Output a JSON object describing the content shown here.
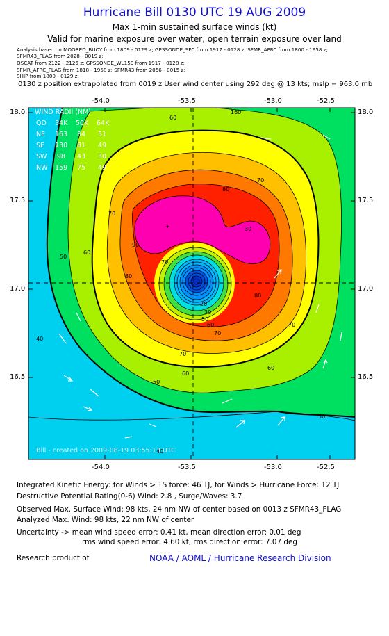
{
  "header": {
    "title": "Hurricane Bill 0130 UTC 19 AUG 2009",
    "subtitle1": "Max 1-min sustained surface winds (kt)",
    "subtitle2": "Valid for marine exposure over water, open terrain exposure over land"
  },
  "sources": [
    "Analysis based on   MOORED_BUOY from 1809 - 0129 z;   GPSSONDE_SFC from 1917 - 0128 z;   SFMR_AFRC from 1800 - 1958 z;",
    "SFMR43_FLAG from 2028 - 0019 z;",
    "QSCAT from 2122 - 2125 z;   GPSSONDE_WL150 from 1917 - 0128 z;",
    "SFMR_AFRC_FLAG from 1818 - 1958 z;   SFMR43 from 2056 - 0015 z;",
    "SHIP from 1800 - 0129 z;"
  ],
  "position_note": "0130 z position extrapolated from 0019 z User wind center using 292 deg @ 13 kts; mslp = 963.0 mb",
  "axes": {
    "lon_ticks": [
      "-54.0",
      "-53.5",
      "-53.0",
      "-52.5"
    ],
    "lat_ticks": [
      "18.0",
      "17.5",
      "17.0",
      "16.5"
    ],
    "lon_range": [
      -54.3,
      -52.3
    ],
    "lat_range": [
      16.0,
      18.0
    ]
  },
  "wind_radii": {
    "title": "WIND RADII (NM)",
    "header": [
      "QD",
      "34K",
      "50K",
      "64K"
    ],
    "rows": [
      [
        "NE",
        "163",
        "84",
        "51"
      ],
      [
        "SE",
        "130",
        "81",
        "49"
      ],
      [
        "SW",
        "98",
        "43",
        "30"
      ],
      [
        "NW",
        "159",
        "75",
        "49"
      ]
    ]
  },
  "contour_labels": [
    "160",
    "60",
    "50",
    "40",
    "90",
    "80",
    "70",
    "20",
    "30"
  ],
  "credit": "Bill  -  created on  2009-08-19  03:55:13 UTC",
  "colors": {
    "outer": "#00d0f0",
    "green": "#00e060",
    "lime": "#a8f000",
    "yellow": "#ffff00",
    "gold": "#ffc000",
    "orange": "#ff7800",
    "red": "#ff2000",
    "magenta": "#ff00b0",
    "eye_outer": "#0090ff",
    "eye_inner": "#0030d0"
  },
  "footer": {
    "ike": "Integrated Kinetic Energy:  for Winds > TS force: 46 TJ,  for Winds > Hurricane Force: 12 TJ",
    "dpr": "Destructive Potential Rating(0-6)   Wind: 2.8 , Surge/Waves: 3.7",
    "observed": "Observed Max. Surface Wind: 98 kts, 24 nm NW of center based on 0013 z SFMR43_FLAG",
    "analyzed": "Analyzed Max. Wind: 98 kts, 22 nm NW of center",
    "uncertainty1": "Uncertainty -> mean wind speed error: 0.41 kt,   mean direction error: 0.01 deg",
    "uncertainty2": "rms wind speed error: 4.60 kt,   rms direction error: 7.07 deg",
    "research_label": "Research product of",
    "research_org": "NOAA / AOML / Hurricane Research Division"
  }
}
